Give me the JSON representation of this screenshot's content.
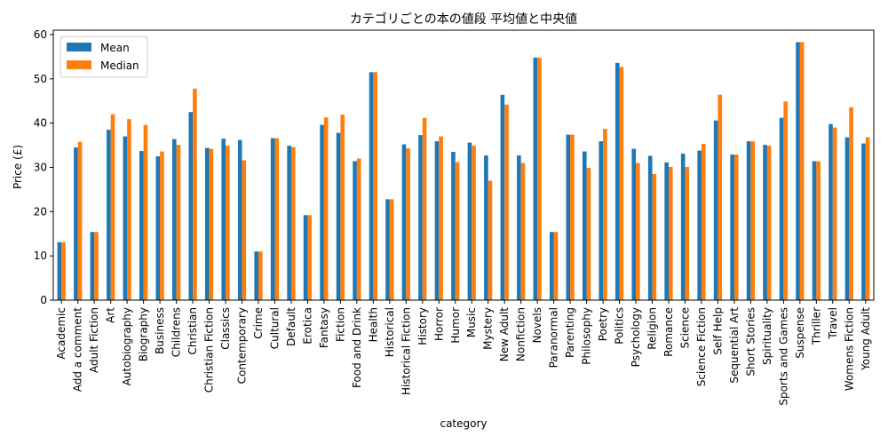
{
  "chart_data": {
    "type": "bar",
    "title": "カテゴリごとの本の値段 平均値と中央値",
    "xlabel": "category",
    "ylabel": "Price (£)",
    "ylim": [
      0,
      61
    ],
    "yticks": [
      0,
      10,
      20,
      30,
      40,
      50,
      60
    ],
    "grid": false,
    "legend": "top-left",
    "categories": [
      "Academic",
      "Add a comment",
      "Adult Fiction",
      "Art",
      "Autobiography",
      "Biography",
      "Business",
      "Childrens",
      "Christian",
      "Christian Fiction",
      "Classics",
      "Contemporary",
      "Crime",
      "Cultural",
      "Default",
      "Erotica",
      "Fantasy",
      "Fiction",
      "Food and Drink",
      "Health",
      "Historical",
      "Historical Fiction",
      "History",
      "Horror",
      "Humor",
      "Music",
      "Mystery",
      "New Adult",
      "Nonfiction",
      "Novels",
      "Paranormal",
      "Parenting",
      "Philosophy",
      "Poetry",
      "Politics",
      "Psychology",
      "Religion",
      "Romance",
      "Science",
      "Science Fiction",
      "Self Help",
      "Sequential Art",
      "Short Stories",
      "Spirituality",
      "Sports and Games",
      "Suspense",
      "Thriller",
      "Travel",
      "Womens Fiction",
      "Young Adult"
    ],
    "series": [
      {
        "name": "Mean",
        "color": "#1f77b4",
        "values": [
          13.1,
          34.5,
          15.4,
          38.5,
          37.0,
          33.7,
          32.5,
          36.4,
          42.5,
          34.4,
          36.5,
          36.2,
          11.0,
          36.6,
          34.9,
          19.2,
          39.6,
          37.8,
          31.4,
          51.5,
          22.8,
          35.2,
          37.3,
          35.9,
          33.5,
          35.6,
          32.7,
          46.4,
          32.7,
          54.8,
          15.4,
          37.4,
          33.6,
          35.9,
          53.6,
          34.2,
          32.6,
          31.1,
          33.1,
          33.8,
          40.6,
          32.9,
          35.9,
          35.1,
          41.2,
          58.3,
          31.4,
          39.8,
          36.8,
          35.4
        ]
      },
      {
        "name": "Median",
        "color": "#ff7f0e",
        "values": [
          13.1,
          35.8,
          15.4,
          42.0,
          40.9,
          39.6,
          33.6,
          35.1,
          47.8,
          34.2,
          34.9,
          31.6,
          11.0,
          36.6,
          34.6,
          19.2,
          41.3,
          41.9,
          32.0,
          51.5,
          22.8,
          34.3,
          41.2,
          37.0,
          31.2,
          34.9,
          27.0,
          44.2,
          31.0,
          54.8,
          15.4,
          37.4,
          29.9,
          38.7,
          52.7,
          31.0,
          28.5,
          30.1,
          30.1,
          35.3,
          46.4,
          32.9,
          35.9,
          34.9,
          44.9,
          58.3,
          31.4,
          39.0,
          43.6,
          36.8
        ]
      }
    ]
  }
}
